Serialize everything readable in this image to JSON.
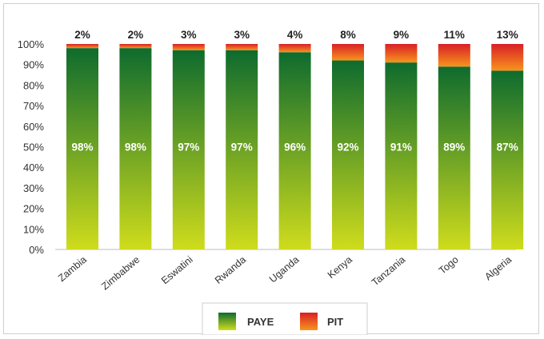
{
  "chart_data": {
    "type": "bar",
    "stacked": true,
    "categories": [
      "Zambia",
      "Zimbabwe",
      "Eswatini",
      "Rwanda",
      "Uganda",
      "Kenya",
      "Tanzania",
      "Togo",
      "Algeria"
    ],
    "series": [
      {
        "name": "PAYE",
        "values": [
          98,
          98,
          97,
          97,
          96,
          92,
          91,
          89,
          87
        ],
        "color_top": "#0e6b2e",
        "color_bottom": "#cfdc1c"
      },
      {
        "name": "PIT",
        "values": [
          2,
          2,
          3,
          3,
          4,
          8,
          9,
          11,
          13
        ],
        "color_top": "#d81f26",
        "color_bottom": "#f7941d"
      }
    ],
    "top_labels": [
      "2%",
      "2%",
      "3%",
      "3%",
      "4%",
      "8%",
      "9%",
      "11%",
      "13%"
    ],
    "inner_labels": [
      "98%",
      "98%",
      "97%",
      "97%",
      "96%",
      "92%",
      "91%",
      "89%",
      "87%"
    ],
    "yticks": [
      "0%",
      "10%",
      "20%",
      "30%",
      "40%",
      "50%",
      "60%",
      "70%",
      "80%",
      "90%",
      "100%"
    ],
    "ylim": [
      0,
      100
    ],
    "grid": false,
    "legend": {
      "position": "bottom",
      "labels": [
        "PAYE",
        "PIT"
      ]
    },
    "title": "",
    "xlabel": "",
    "ylabel": ""
  }
}
